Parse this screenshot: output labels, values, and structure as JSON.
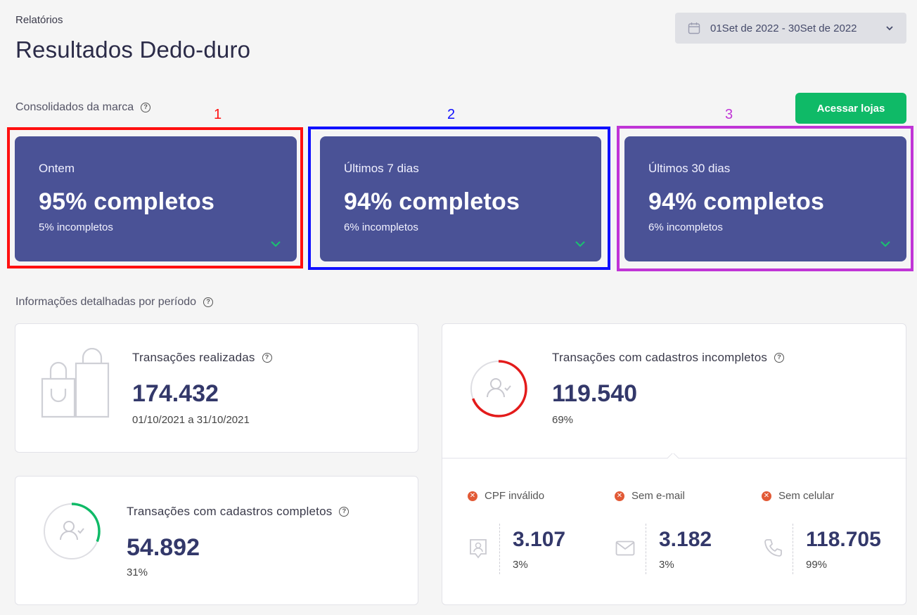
{
  "breadcrumb": "Relatórios",
  "page_title": "Resultados Dedo-duro",
  "date_range": {
    "label": "01Set de 2022 - 30Set de 2022"
  },
  "section_brand": "Consolidados da marca",
  "access_button": "Acessar lojas",
  "annotations": [
    "1",
    "2",
    "3"
  ],
  "summary_cards": [
    {
      "period": "Ontem",
      "complete": "95% completos",
      "incomplete": "5% incompletos"
    },
    {
      "period": "Últimos 7 dias",
      "complete": "94% completos",
      "incomplete": "6% incompletos"
    },
    {
      "period": "Últimos 30 dias",
      "complete": "94% completos",
      "incomplete": "6% incompletos"
    }
  ],
  "section_detail": "Informações detalhadas por período",
  "transactions": {
    "title": "Transações realizadas",
    "value": "174.432",
    "range": "01/10/2021 a 31/10/2021"
  },
  "complete_tx": {
    "title": "Transações com cadastros completos",
    "value": "54.892",
    "pct": "31%",
    "ratio": 0.31
  },
  "incomplete_tx": {
    "title": "Transações com cadastros incompletos",
    "value": "119.540",
    "pct": "69%",
    "ratio": 0.69,
    "breakdown": [
      {
        "label": "CPF inválido",
        "value": "3.107",
        "pct": "3%",
        "icon": "id-badge-icon"
      },
      {
        "label": "Sem e-mail",
        "value": "3.182",
        "pct": "3%",
        "icon": "mail-icon"
      },
      {
        "label": "Sem celular",
        "value": "118.705",
        "pct": "99%",
        "icon": "phone-icon"
      }
    ]
  },
  "colors": {
    "card": "#4a5296",
    "accent": "#0fba67",
    "alert": "#e31b1b",
    "annot1": "#ff1010",
    "annot2": "#1010ff",
    "annot3": "#c035d6"
  }
}
